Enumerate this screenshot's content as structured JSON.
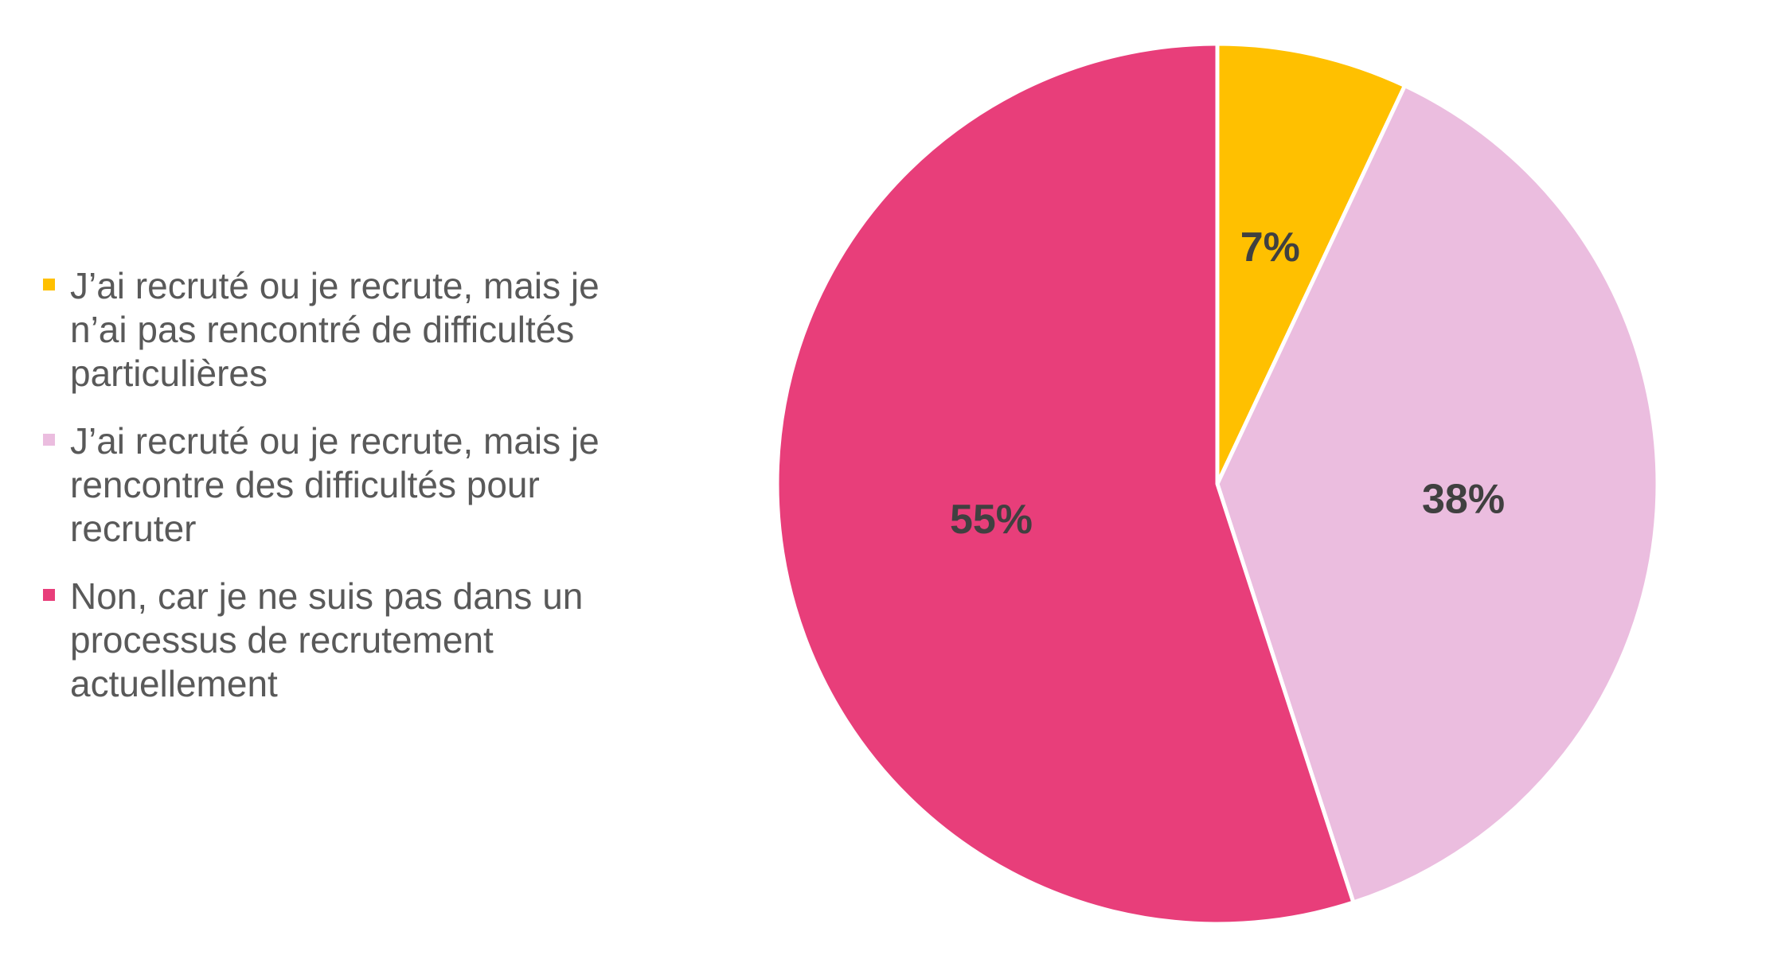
{
  "chart_data": {
    "type": "pie",
    "legend_position": "left",
    "slices": [
      {
        "label": "J’ai recruté ou je recrute, mais je n’ai pas rencontré de difficultés particulières",
        "value": 7,
        "value_label": "7%",
        "color": "#FFC000"
      },
      {
        "label": "J’ai recruté ou je recrute, mais je rencontre des difficultés pour recruter",
        "value": 38,
        "value_label": "38%",
        "color": "#EBBDDF"
      },
      {
        "label": "Non, car je ne suis pas dans un processus de recrutement actuellement",
        "value": 55,
        "value_label": "55%",
        "color": "#E83E7A"
      }
    ]
  }
}
